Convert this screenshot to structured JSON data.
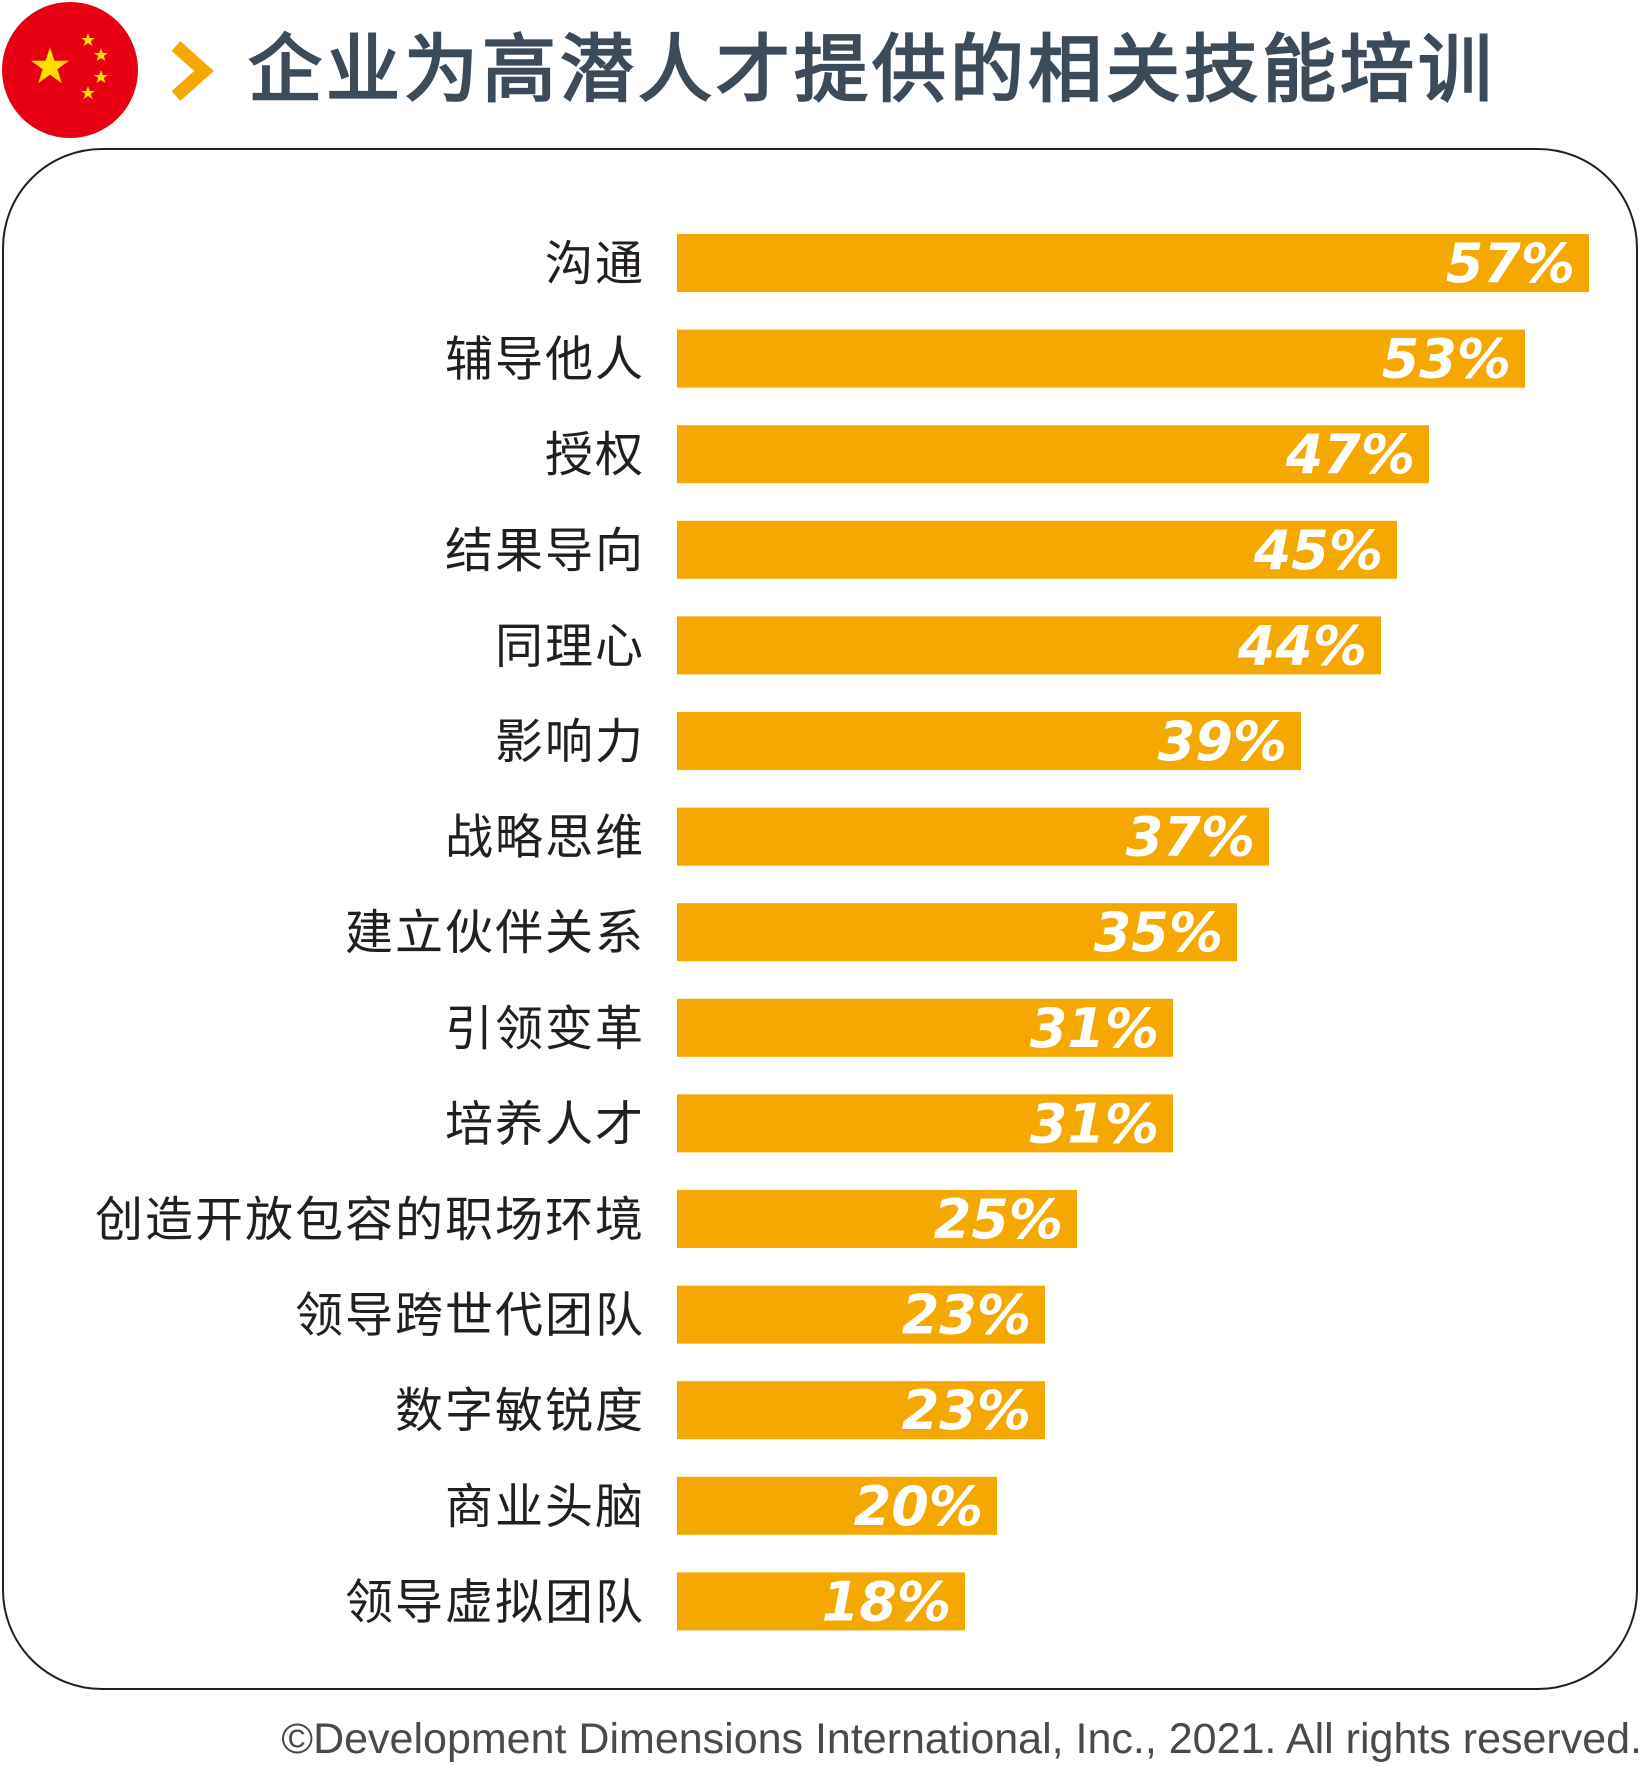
{
  "header": {
    "title": "企业为高潜人才提供的相关技能培训",
    "flag_icon": "china-flag-icon",
    "chevron_icon": "chevron-right-icon"
  },
  "colors": {
    "bar": "#f5a800",
    "title": "#3c4b59",
    "flag_red": "#e60012",
    "flag_star": "#ffde00",
    "label_text": "#231f20",
    "value_text": "#ffffff"
  },
  "chart_data": {
    "type": "bar",
    "orientation": "horizontal",
    "title": "企业为高潜人才提供的相关技能培训",
    "categories": [
      "沟通",
      "辅导他人",
      "授权",
      "结果导向",
      "同理心",
      "影响力",
      "战略思维",
      "建立伙伴关系",
      "引领变革",
      "培养人才",
      "创造开放包容的职场环境",
      "领导跨世代团队",
      "数字敏锐度",
      "商业头脑",
      "领导虚拟团队"
    ],
    "values": [
      57,
      53,
      47,
      45,
      44,
      39,
      37,
      35,
      31,
      31,
      25,
      23,
      23,
      20,
      18
    ],
    "value_labels": [
      "57%",
      "53%",
      "47%",
      "45%",
      "44%",
      "39%",
      "37%",
      "35%",
      "31%",
      "31%",
      "25%",
      "23%",
      "23%",
      "20%",
      "18%"
    ],
    "unit": "%",
    "xlabel": "",
    "ylabel": "",
    "xlim": [
      0,
      57
    ],
    "grid": false,
    "legend": "none"
  },
  "footer": {
    "copyright": "©Development Dimensions International, Inc., 2021. All rights reserved."
  }
}
